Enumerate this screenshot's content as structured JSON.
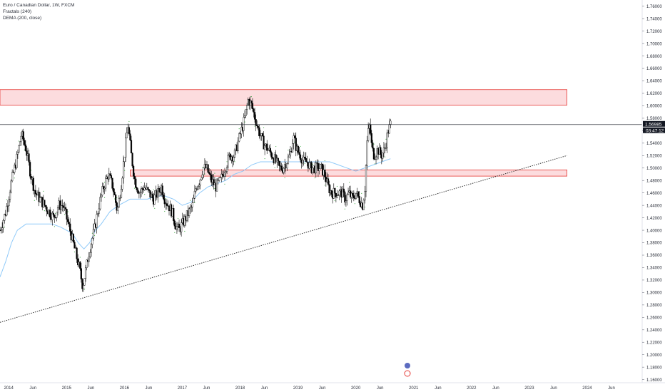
{
  "legend": {
    "symbol": "Euro / Canadian Dollar, 1W, FXCM",
    "indicator_1": "Fractals (240)",
    "indicator_2": "DEMA (200, close)"
  },
  "price_label": "1.56985",
  "countdown_label": "03:47:12",
  "colors": {
    "zone_fill": "#fbd6d8",
    "zone_stroke": "#e53935",
    "candle": "#000000",
    "dema": "#90caf9",
    "trendline": "#333333",
    "grid_text": "#2a2e39"
  },
  "chart_data": {
    "type": "candlestick",
    "y_axis": {
      "ticks": [
        1.76,
        1.74,
        1.72,
        1.7,
        1.68,
        1.66,
        1.64,
        1.62,
        1.6,
        1.58,
        1.56,
        1.54,
        1.52,
        1.5,
        1.48,
        1.46,
        1.44,
        1.42,
        1.4,
        1.38,
        1.36,
        1.34,
        1.32,
        1.3,
        1.28,
        1.26,
        1.24,
        1.22,
        1.2,
        1.18,
        1.16
      ],
      "ylim": [
        1.155,
        1.77
      ]
    },
    "x_axis": {
      "ticks": [
        {
          "label": "2014",
          "t": 2014.0
        },
        {
          "label": "Jun",
          "t": 2014.42
        },
        {
          "label": "2015",
          "t": 2015.0
        },
        {
          "label": "Jun",
          "t": 2015.42
        },
        {
          "label": "2016",
          "t": 2016.0
        },
        {
          "label": "Jun",
          "t": 2016.42
        },
        {
          "label": "2017",
          "t": 2017.0
        },
        {
          "label": "Jun",
          "t": 2017.42
        },
        {
          "label": "2018",
          "t": 2018.0
        },
        {
          "label": "Jun",
          "t": 2018.42
        },
        {
          "label": "2019",
          "t": 2019.0
        },
        {
          "label": "Jun",
          "t": 2019.42
        },
        {
          "label": "2020",
          "t": 2020.0
        },
        {
          "label": "Jun",
          "t": 2020.42
        },
        {
          "label": "2021",
          "t": 2021.0
        },
        {
          "label": "Jun",
          "t": 2021.42
        },
        {
          "label": "2022",
          "t": 2022.0
        },
        {
          "label": "Jun",
          "t": 2022.42
        },
        {
          "label": "2023",
          "t": 2023.0
        },
        {
          "label": "Jun",
          "t": 2023.42
        },
        {
          "label": "2024",
          "t": 2024.0
        },
        {
          "label": "Jun",
          "t": 2024.42
        }
      ],
      "xlim": [
        2013.85,
        2024.95
      ]
    },
    "series": [
      {
        "kind": "price",
        "points": [
          [
            2013.85,
            1.4
          ],
          [
            2013.95,
            1.43
          ],
          [
            2014.05,
            1.48
          ],
          [
            2014.15,
            1.52
          ],
          [
            2014.22,
            1.555
          ],
          [
            2014.3,
            1.53
          ],
          [
            2014.38,
            1.49
          ],
          [
            2014.46,
            1.46
          ],
          [
            2014.54,
            1.45
          ],
          [
            2014.62,
            1.44
          ],
          [
            2014.7,
            1.43
          ],
          [
            2014.78,
            1.42
          ],
          [
            2014.86,
            1.44
          ],
          [
            2014.94,
            1.44
          ],
          [
            2015.0,
            1.42
          ],
          [
            2015.06,
            1.4
          ],
          [
            2015.14,
            1.37
          ],
          [
            2015.22,
            1.34
          ],
          [
            2015.28,
            1.31
          ],
          [
            2015.34,
            1.34
          ],
          [
            2015.4,
            1.37
          ],
          [
            2015.48,
            1.4
          ],
          [
            2015.56,
            1.44
          ],
          [
            2015.64,
            1.47
          ],
          [
            2015.72,
            1.49
          ],
          [
            2015.8,
            1.47
          ],
          [
            2015.88,
            1.43
          ],
          [
            2015.94,
            1.47
          ],
          [
            2016.0,
            1.52
          ],
          [
            2016.06,
            1.57
          ],
          [
            2016.12,
            1.52
          ],
          [
            2016.18,
            1.48
          ],
          [
            2016.26,
            1.46
          ],
          [
            2016.34,
            1.47
          ],
          [
            2016.42,
            1.46
          ],
          [
            2016.5,
            1.45
          ],
          [
            2016.58,
            1.46
          ],
          [
            2016.64,
            1.47
          ],
          [
            2016.7,
            1.45
          ],
          [
            2016.76,
            1.44
          ],
          [
            2016.82,
            1.43
          ],
          [
            2016.88,
            1.41
          ],
          [
            2016.94,
            1.4
          ],
          [
            2017.0,
            1.41
          ],
          [
            2017.06,
            1.42
          ],
          [
            2017.12,
            1.43
          ],
          [
            2017.18,
            1.44
          ],
          [
            2017.24,
            1.47
          ],
          [
            2017.3,
            1.48
          ],
          [
            2017.36,
            1.5
          ],
          [
            2017.42,
            1.5
          ],
          [
            2017.5,
            1.48
          ],
          [
            2017.58,
            1.47
          ],
          [
            2017.66,
            1.48
          ],
          [
            2017.74,
            1.5
          ],
          [
            2017.82,
            1.52
          ],
          [
            2017.9,
            1.52
          ],
          [
            2017.96,
            1.54
          ],
          [
            2018.02,
            1.56
          ],
          [
            2018.08,
            1.58
          ],
          [
            2018.14,
            1.61
          ],
          [
            2018.2,
            1.6
          ],
          [
            2018.26,
            1.58
          ],
          [
            2018.32,
            1.56
          ],
          [
            2018.4,
            1.54
          ],
          [
            2018.48,
            1.53
          ],
          [
            2018.56,
            1.52
          ],
          [
            2018.62,
            1.51
          ],
          [
            2018.68,
            1.5
          ],
          [
            2018.74,
            1.5
          ],
          [
            2018.8,
            1.51
          ],
          [
            2018.86,
            1.52
          ],
          [
            2018.92,
            1.55
          ],
          [
            2018.98,
            1.53
          ],
          [
            2019.04,
            1.52
          ],
          [
            2019.1,
            1.51
          ],
          [
            2019.16,
            1.51
          ],
          [
            2019.22,
            1.5
          ],
          [
            2019.28,
            1.5
          ],
          [
            2019.34,
            1.5
          ],
          [
            2019.4,
            1.5
          ],
          [
            2019.46,
            1.49
          ],
          [
            2019.52,
            1.47
          ],
          [
            2019.58,
            1.46
          ],
          [
            2019.64,
            1.46
          ],
          [
            2019.7,
            1.46
          ],
          [
            2019.76,
            1.46
          ],
          [
            2019.82,
            1.45
          ],
          [
            2019.88,
            1.46
          ],
          [
            2019.94,
            1.45
          ],
          [
            2020.0,
            1.46
          ],
          [
            2020.06,
            1.45
          ],
          [
            2020.12,
            1.44
          ],
          [
            2020.16,
            1.47
          ],
          [
            2020.2,
            1.55
          ],
          [
            2020.24,
            1.57
          ],
          [
            2020.28,
            1.53
          ],
          [
            2020.32,
            1.52
          ],
          [
            2020.38,
            1.53
          ],
          [
            2020.44,
            1.52
          ],
          [
            2020.5,
            1.53
          ],
          [
            2020.56,
            1.56
          ],
          [
            2020.6,
            1.57
          ]
        ]
      },
      {
        "kind": "dema",
        "points": [
          [
            2013.85,
            1.325
          ],
          [
            2013.95,
            1.35
          ],
          [
            2014.05,
            1.38
          ],
          [
            2014.15,
            1.4
          ],
          [
            2014.3,
            1.41
          ],
          [
            2014.45,
            1.41
          ],
          [
            2014.6,
            1.41
          ],
          [
            2014.75,
            1.41
          ],
          [
            2014.9,
            1.405
          ],
          [
            2015.0,
            1.4
          ],
          [
            2015.1,
            1.395
          ],
          [
            2015.2,
            1.38
          ],
          [
            2015.3,
            1.37
          ],
          [
            2015.4,
            1.38
          ],
          [
            2015.5,
            1.4
          ],
          [
            2015.6,
            1.41
          ],
          [
            2015.75,
            1.43
          ],
          [
            2015.9,
            1.44
          ],
          [
            2016.0,
            1.445
          ],
          [
            2016.1,
            1.45
          ],
          [
            2016.25,
            1.45
          ],
          [
            2016.4,
            1.45
          ],
          [
            2016.55,
            1.455
          ],
          [
            2016.7,
            1.455
          ],
          [
            2016.85,
            1.45
          ],
          [
            2017.0,
            1.44
          ],
          [
            2017.15,
            1.445
          ],
          [
            2017.3,
            1.46
          ],
          [
            2017.45,
            1.47
          ],
          [
            2017.6,
            1.475
          ],
          [
            2017.75,
            1.48
          ],
          [
            2017.9,
            1.49
          ],
          [
            2018.05,
            1.495
          ],
          [
            2018.2,
            1.505
          ],
          [
            2018.35,
            1.51
          ],
          [
            2018.5,
            1.51
          ],
          [
            2018.65,
            1.51
          ],
          [
            2018.8,
            1.51
          ],
          [
            2018.95,
            1.51
          ],
          [
            2019.1,
            1.51
          ],
          [
            2019.25,
            1.51
          ],
          [
            2019.4,
            1.51
          ],
          [
            2019.55,
            1.51
          ],
          [
            2019.7,
            1.505
          ],
          [
            2019.85,
            1.5
          ],
          [
            2020.0,
            1.495
          ],
          [
            2020.15,
            1.5
          ],
          [
            2020.3,
            1.505
          ],
          [
            2020.45,
            1.51
          ],
          [
            2020.6,
            1.515
          ]
        ]
      }
    ],
    "zones": [
      {
        "x0": 2013.85,
        "x1": 2023.65,
        "y_low": 1.601,
        "y_high": 1.626
      },
      {
        "x0": 2016.1,
        "x1": 2023.65,
        "y_low": 1.487,
        "y_high": 1.497
      }
    ],
    "trendline": {
      "from": [
        2013.85,
        1.252
      ],
      "to": [
        2023.65,
        1.52
      ]
    },
    "price_line": 1.56985,
    "grid": false
  }
}
